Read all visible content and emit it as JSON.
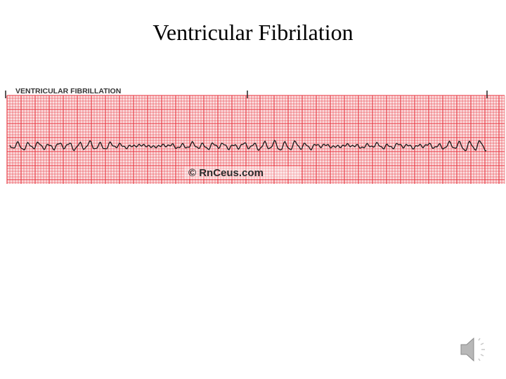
{
  "slide": {
    "title": "Ventricular Fibrilation"
  },
  "ecg_strip": {
    "label": "VENTRICULAR FIBRILLATION",
    "watermark": "© RnCeus.com",
    "grid_color": "#e8323c",
    "trace_color": "#1a1a1a"
  },
  "audio": {
    "icon": "speaker-icon"
  }
}
